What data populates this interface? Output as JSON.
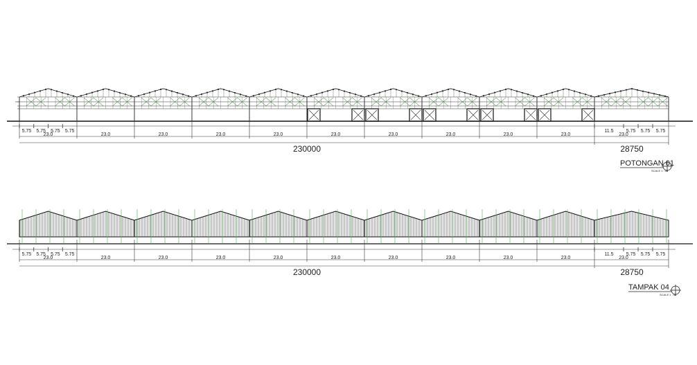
{
  "drawings": [
    {
      "title": "POTONGAN 01",
      "scale": "SCALE 1 : 50",
      "sub_dims": [
        "5.75",
        "5.75",
        "5.75",
        "5.75"
      ],
      "bay_dims": [
        "23.0",
        "23.0",
        "23.0",
        "23.0",
        "23.0",
        "23.0",
        "23.0",
        "23.0",
        "23.0",
        "23.0"
      ],
      "total": "230000",
      "right_total": "28750",
      "right_sub_dims": [
        "11.5",
        "5.75",
        "5.75",
        "5.75"
      ],
      "right_bay_dim": "23.0"
    },
    {
      "title": "TAMPAK 04",
      "scale": "SCALE 1 : 50",
      "sub_dims": [
        "5.75",
        "5.75",
        "5.75",
        "5.75"
      ],
      "bay_dims": [
        "23.0",
        "23.0",
        "23.0",
        "23.0",
        "23.0",
        "23.0",
        "23.0",
        "23.0",
        "23.0",
        "23.0"
      ],
      "total": "230000",
      "right_total": "28750",
      "right_sub_dims": [
        "11.5",
        "5.75",
        "5.75",
        "5.75"
      ],
      "right_bay_dim": "23.0"
    }
  ]
}
